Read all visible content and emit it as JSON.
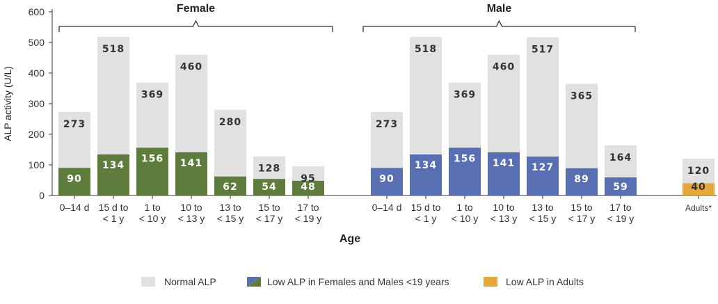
{
  "colors": {
    "normal": "#e1e1e1",
    "female_low": "#5e7d3c",
    "male_low": "#5870b3",
    "adult_low": "#e4a83c",
    "axis": "#333333"
  },
  "chart_data": {
    "type": "bar",
    "ylabel": "ALP activity (U/L)",
    "xlabel": "Age",
    "ylim": [
      0,
      600
    ],
    "yticks": [
      0,
      100,
      200,
      300,
      400,
      500,
      600
    ],
    "groups": [
      {
        "name": "Female",
        "categories": [
          "0–14 d",
          "15 d to\n< 1 y",
          "1 to\n< 10 y",
          "10 to\n< 13 y",
          "13 to\n< 15 y",
          "15 to\n< 17 y",
          "17 to\n< 19 y"
        ],
        "normal": [
          273,
          518,
          369,
          460,
          280,
          128,
          95
        ],
        "low": [
          90,
          134,
          156,
          141,
          62,
          54,
          48
        ]
      },
      {
        "name": "Male",
        "categories": [
          "0–14 d",
          "15 d to\n< 1 y",
          "1 to\n< 10 y",
          "10 to\n< 13 y",
          "13 to\n< 15 y",
          "15 to\n< 17 y",
          "17 to\n< 19 y"
        ],
        "normal": [
          273,
          518,
          369,
          460,
          517,
          365,
          164
        ],
        "low": [
          90,
          134,
          156,
          141,
          127,
          89,
          59
        ]
      },
      {
        "name": "",
        "categories": [
          "Adults*"
        ],
        "normal": [
          120
        ],
        "low": [
          40
        ]
      }
    ],
    "legend": [
      {
        "label": "Normal ALP",
        "key": "normal"
      },
      {
        "label": "Low ALP in Females and Males <19 years",
        "key": "female_male_low"
      },
      {
        "label": "Low ALP in Adults",
        "key": "adult_low"
      }
    ],
    "legend_position": "bottom",
    "grid": false
  }
}
